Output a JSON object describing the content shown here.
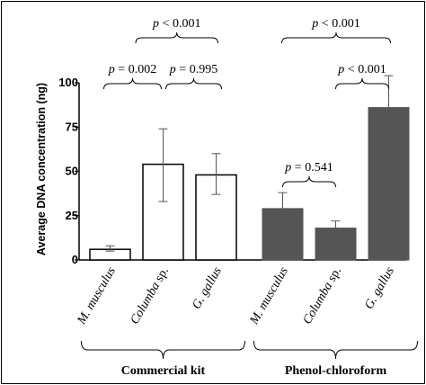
{
  "chart_data": {
    "type": "bar",
    "ylabel": "Average DNA concentration (ng)",
    "ylim": [
      0,
      100
    ],
    "yticks": [
      "0",
      "25",
      "50",
      "75",
      "100"
    ],
    "yticks_values": [
      0,
      25,
      50,
      75,
      100
    ],
    "categories": [
      {
        "genus": "M.",
        "rest": " musculus",
        "italic_all": true
      },
      {
        "genus": "Columba",
        "rest": " sp.",
        "italic_all": false
      },
      {
        "genus": "G.",
        "rest": " gallus",
        "italic_all": true
      },
      {
        "genus": "M.",
        "rest": " musculus",
        "italic_all": true
      },
      {
        "genus": "Columba",
        "rest": " sp.",
        "italic_all": false
      },
      {
        "genus": "G.",
        "rest": " gallus",
        "italic_all": true
      }
    ],
    "values": [
      6,
      54,
      48,
      29,
      18,
      86
    ],
    "error_low": [
      5,
      33,
      37,
      19,
      13,
      68
    ],
    "error_high": [
      8,
      74,
      60,
      38,
      22,
      104
    ],
    "groups": [
      {
        "label": "Commercial kit",
        "from": 0,
        "to": 2,
        "style": "open"
      },
      {
        "label": "Phenol-chloroform",
        "from": 3,
        "to": 5,
        "style": "filled"
      }
    ],
    "comparisons": [
      {
        "p": "p",
        "op": " < ",
        "value": "0.001",
        "from": 0.5,
        "to": 2,
        "level": 2
      },
      {
        "p": "p",
        "op": " = ",
        "value": "0.002",
        "from": 0,
        "to": 1,
        "level": 1
      },
      {
        "p": "p",
        "op": " = ",
        "value": "0.995",
        "from": 1,
        "to": 2,
        "level": 1
      },
      {
        "p": "p",
        "op": " < ",
        "value": "0.001",
        "from": 3,
        "to": 5,
        "level": 2
      },
      {
        "p": "p",
        "op": " < ",
        "value": "0.001",
        "from": 4,
        "to": 5,
        "level": 1
      },
      {
        "p": "p",
        "op": " = ",
        "value": "0.541",
        "from": 3,
        "to": 4,
        "level": 0
      }
    ],
    "colors": {
      "open_fill": "#ffffff",
      "filled_fill": "#555555",
      "error": "#555555"
    },
    "grid": false,
    "legend": "none"
  }
}
